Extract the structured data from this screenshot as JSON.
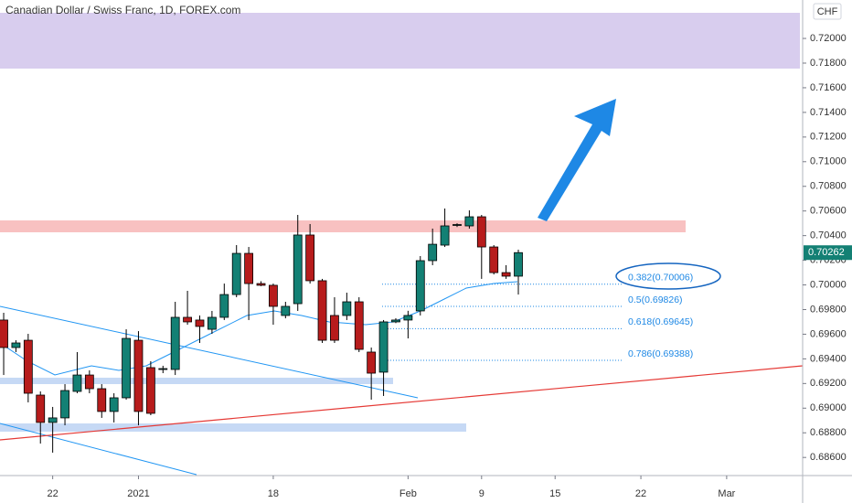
{
  "chart_data": {
    "type": "candlestick",
    "title": "Canadian Dollar / Swiss Franc, 1D, FOREX.com",
    "currency": "CHF",
    "up_color": "#138074",
    "down_color": "#b71c1c",
    "open": [
      0.69715,
      0.69492,
      0.69551,
      0.69106,
      0.68884,
      0.68921,
      0.69136,
      0.69269,
      0.69158,
      0.68973,
      0.69084,
      0.69551,
      0.69329,
      0.69314,
      0.69314,
      0.69737,
      0.69715,
      0.6964,
      0.69737,
      0.69922,
      0.70256,
      0.70011,
      0.69997,
      0.69752,
      0.69848,
      0.70405,
      0.70034,
      0.69752,
      0.69752,
      0.69863,
      0.69455,
      0.69292,
      0.697,
      0.69715,
      0.69789,
      0.70197,
      0.70323,
      0.70486,
      0.70479,
      0.70553,
      0.70308,
      0.701,
      0.70071
    ],
    "high": [
      0.69774,
      0.69551,
      0.69603,
      0.69136,
      0.6901,
      0.69195,
      0.69455,
      0.69307,
      0.69195,
      0.69121,
      0.6964,
      0.69625,
      0.69381,
      0.69344,
      0.69863,
      0.69952,
      0.69752,
      0.69789,
      0.70011,
      0.70323,
      0.70308,
      0.7003,
      0.70011,
      0.69863,
      0.70568,
      0.70494,
      0.70049,
      0.699,
      0.69937,
      0.699,
      0.69492,
      0.69715,
      0.6973,
      0.6979,
      0.70234,
      0.70457,
      0.7062,
      0.705,
      0.70605,
      0.70568,
      0.70323,
      0.7016,
      0.70286
    ],
    "low": [
      0.69269,
      0.69455,
      0.69047,
      0.68713,
      0.68639,
      0.68861,
      0.69121,
      0.69121,
      0.68921,
      0.68884,
      0.69069,
      0.68861,
      0.68943,
      0.69284,
      0.69269,
      0.69677,
      0.69529,
      0.69603,
      0.69715,
      0.699,
      0.69715,
      0.6999,
      0.69677,
      0.69729,
      0.69789,
      0.70011,
      0.69529,
      0.69529,
      0.69715,
      0.69455,
      0.69069,
      0.69099,
      0.6969,
      0.69566,
      0.69752,
      0.7016,
      0.70308,
      0.7047,
      0.70457,
      0.70049,
      0.70085,
      0.70049,
      0.69922
    ],
    "close": [
      0.69492,
      0.69529,
      0.69121,
      0.68884,
      0.68921,
      0.69143,
      0.69269,
      0.69158,
      0.68973,
      0.69084,
      0.69566,
      0.68973,
      0.68958,
      0.69321,
      0.69737,
      0.697,
      0.69663,
      0.69737,
      0.69922,
      0.70256,
      0.70011,
      0.69997,
      0.69826,
      0.69826,
      0.70405,
      0.70034,
      0.69551,
      0.69551,
      0.69863,
      0.69477,
      0.69284,
      0.697,
      0.69715,
      0.69752,
      0.70197,
      0.7033,
      0.70479,
      0.7049,
      0.70553,
      0.70308,
      0.701,
      0.70071,
      0.70262
    ],
    "xlim": [
      -0.3,
      65.2
    ],
    "xticks": [
      {
        "value": 4,
        "label": "22"
      },
      {
        "value": 11,
        "label": "2021"
      },
      {
        "value": 22,
        "label": "18"
      },
      {
        "value": 33,
        "label": "Feb"
      },
      {
        "value": 39,
        "label": "9"
      },
      {
        "value": 45,
        "label": "15"
      },
      {
        "value": 52,
        "label": "22"
      },
      {
        "value": 59,
        "label": "Mar"
      }
    ],
    "ylim": [
      0.68453,
      0.72312
    ],
    "yticks": [
      {
        "value": 0.686,
        "label": "0.68600"
      },
      {
        "value": 0.688,
        "label": "0.68800"
      },
      {
        "value": 0.69,
        "label": "0.69000"
      },
      {
        "value": 0.692,
        "label": "0.69200"
      },
      {
        "value": 0.694,
        "label": "0.69400"
      },
      {
        "value": 0.696,
        "label": "0.69600"
      },
      {
        "value": 0.698,
        "label": "0.69800"
      },
      {
        "value": 0.7,
        "label": "0.70000"
      },
      {
        "value": 0.702,
        "label": "0.70200"
      },
      {
        "value": 0.704,
        "label": "0.70400"
      },
      {
        "value": 0.706,
        "label": "0.70600"
      },
      {
        "value": 0.708,
        "label": "0.70800"
      },
      {
        "value": 0.71,
        "label": "0.71000"
      },
      {
        "value": 0.712,
        "label": "0.71200"
      },
      {
        "value": 0.714,
        "label": "0.71400"
      },
      {
        "value": 0.716,
        "label": "0.71600"
      },
      {
        "value": 0.718,
        "label": "0.71800"
      },
      {
        "value": 0.72,
        "label": "0.72000"
      }
    ],
    "fib_levels": [
      {
        "value": 0.70006,
        "label": "0.382(0.70006)"
      },
      {
        "value": 0.69826,
        "label": "0.5(0.69826)"
      },
      {
        "value": 0.69645,
        "label": "0.618(0.69645)"
      },
      {
        "value": 0.69388,
        "label": "0.786(0.69388)"
      }
    ],
    "grid": false
  }
}
